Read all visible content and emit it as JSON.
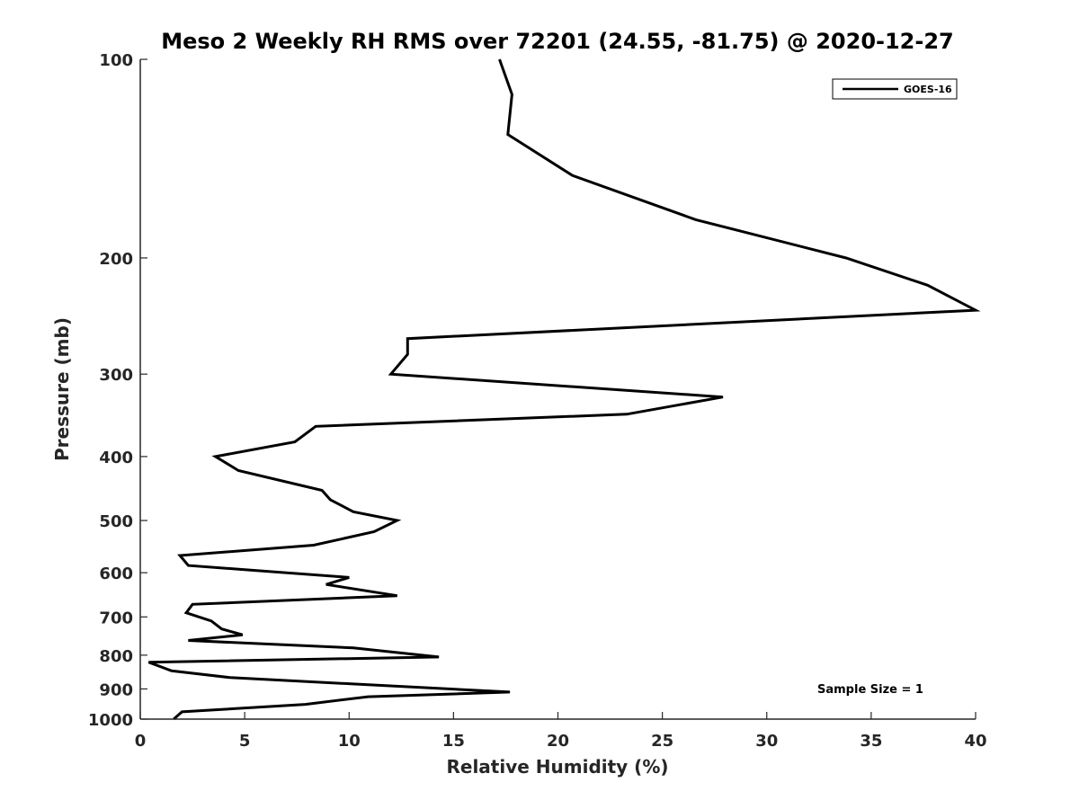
{
  "chart_data": {
    "type": "line",
    "title": "Meso 2 Weekly RH RMS over 72201 (24.55, -81.75) @ 2020-12-27",
    "xlabel": "Relative Humidity (%)",
    "ylabel": "Pressure (mb)",
    "xlim": [
      0,
      40
    ],
    "ylim": [
      100,
      1000
    ],
    "y_scale": "log",
    "y_reversed": true,
    "x_ticks": [
      0,
      5,
      10,
      15,
      20,
      25,
      30,
      35,
      40
    ],
    "y_ticks": [
      100,
      200,
      300,
      400,
      500,
      600,
      700,
      800,
      900,
      1000
    ],
    "legend_position": "top-right",
    "annotation": "Sample Size = 1",
    "color": "#000000",
    "series": [
      {
        "name": "GOES-16",
        "x": [
          17.2,
          17.8,
          17.6,
          20.7,
          26.6,
          33.8,
          37.7,
          40.0,
          12.8,
          12.8,
          12.0,
          27.9,
          23.3,
          8.4,
          7.4,
          3.6,
          4.7,
          8.7,
          9.1,
          10.2,
          12.3,
          11.2,
          8.3,
          1.9,
          2.3,
          10.0,
          8.9,
          12.3,
          2.5,
          2.2,
          3.4,
          3.9,
          4.9,
          2.3,
          10.2,
          14.3,
          0.4,
          1.5,
          4.3,
          17.7,
          10.9,
          7.9,
          2.0,
          1.6
        ],
        "y": [
          100,
          113,
          130,
          150,
          175,
          200,
          220,
          240,
          265,
          280,
          300,
          325,
          345,
          360,
          380,
          400,
          420,
          450,
          465,
          485,
          500,
          520,
          545,
          565,
          585,
          610,
          625,
          650,
          670,
          690,
          710,
          730,
          745,
          760,
          780,
          805,
          820,
          845,
          865,
          910,
          925,
          950,
          975,
          1000
        ]
      }
    ]
  }
}
